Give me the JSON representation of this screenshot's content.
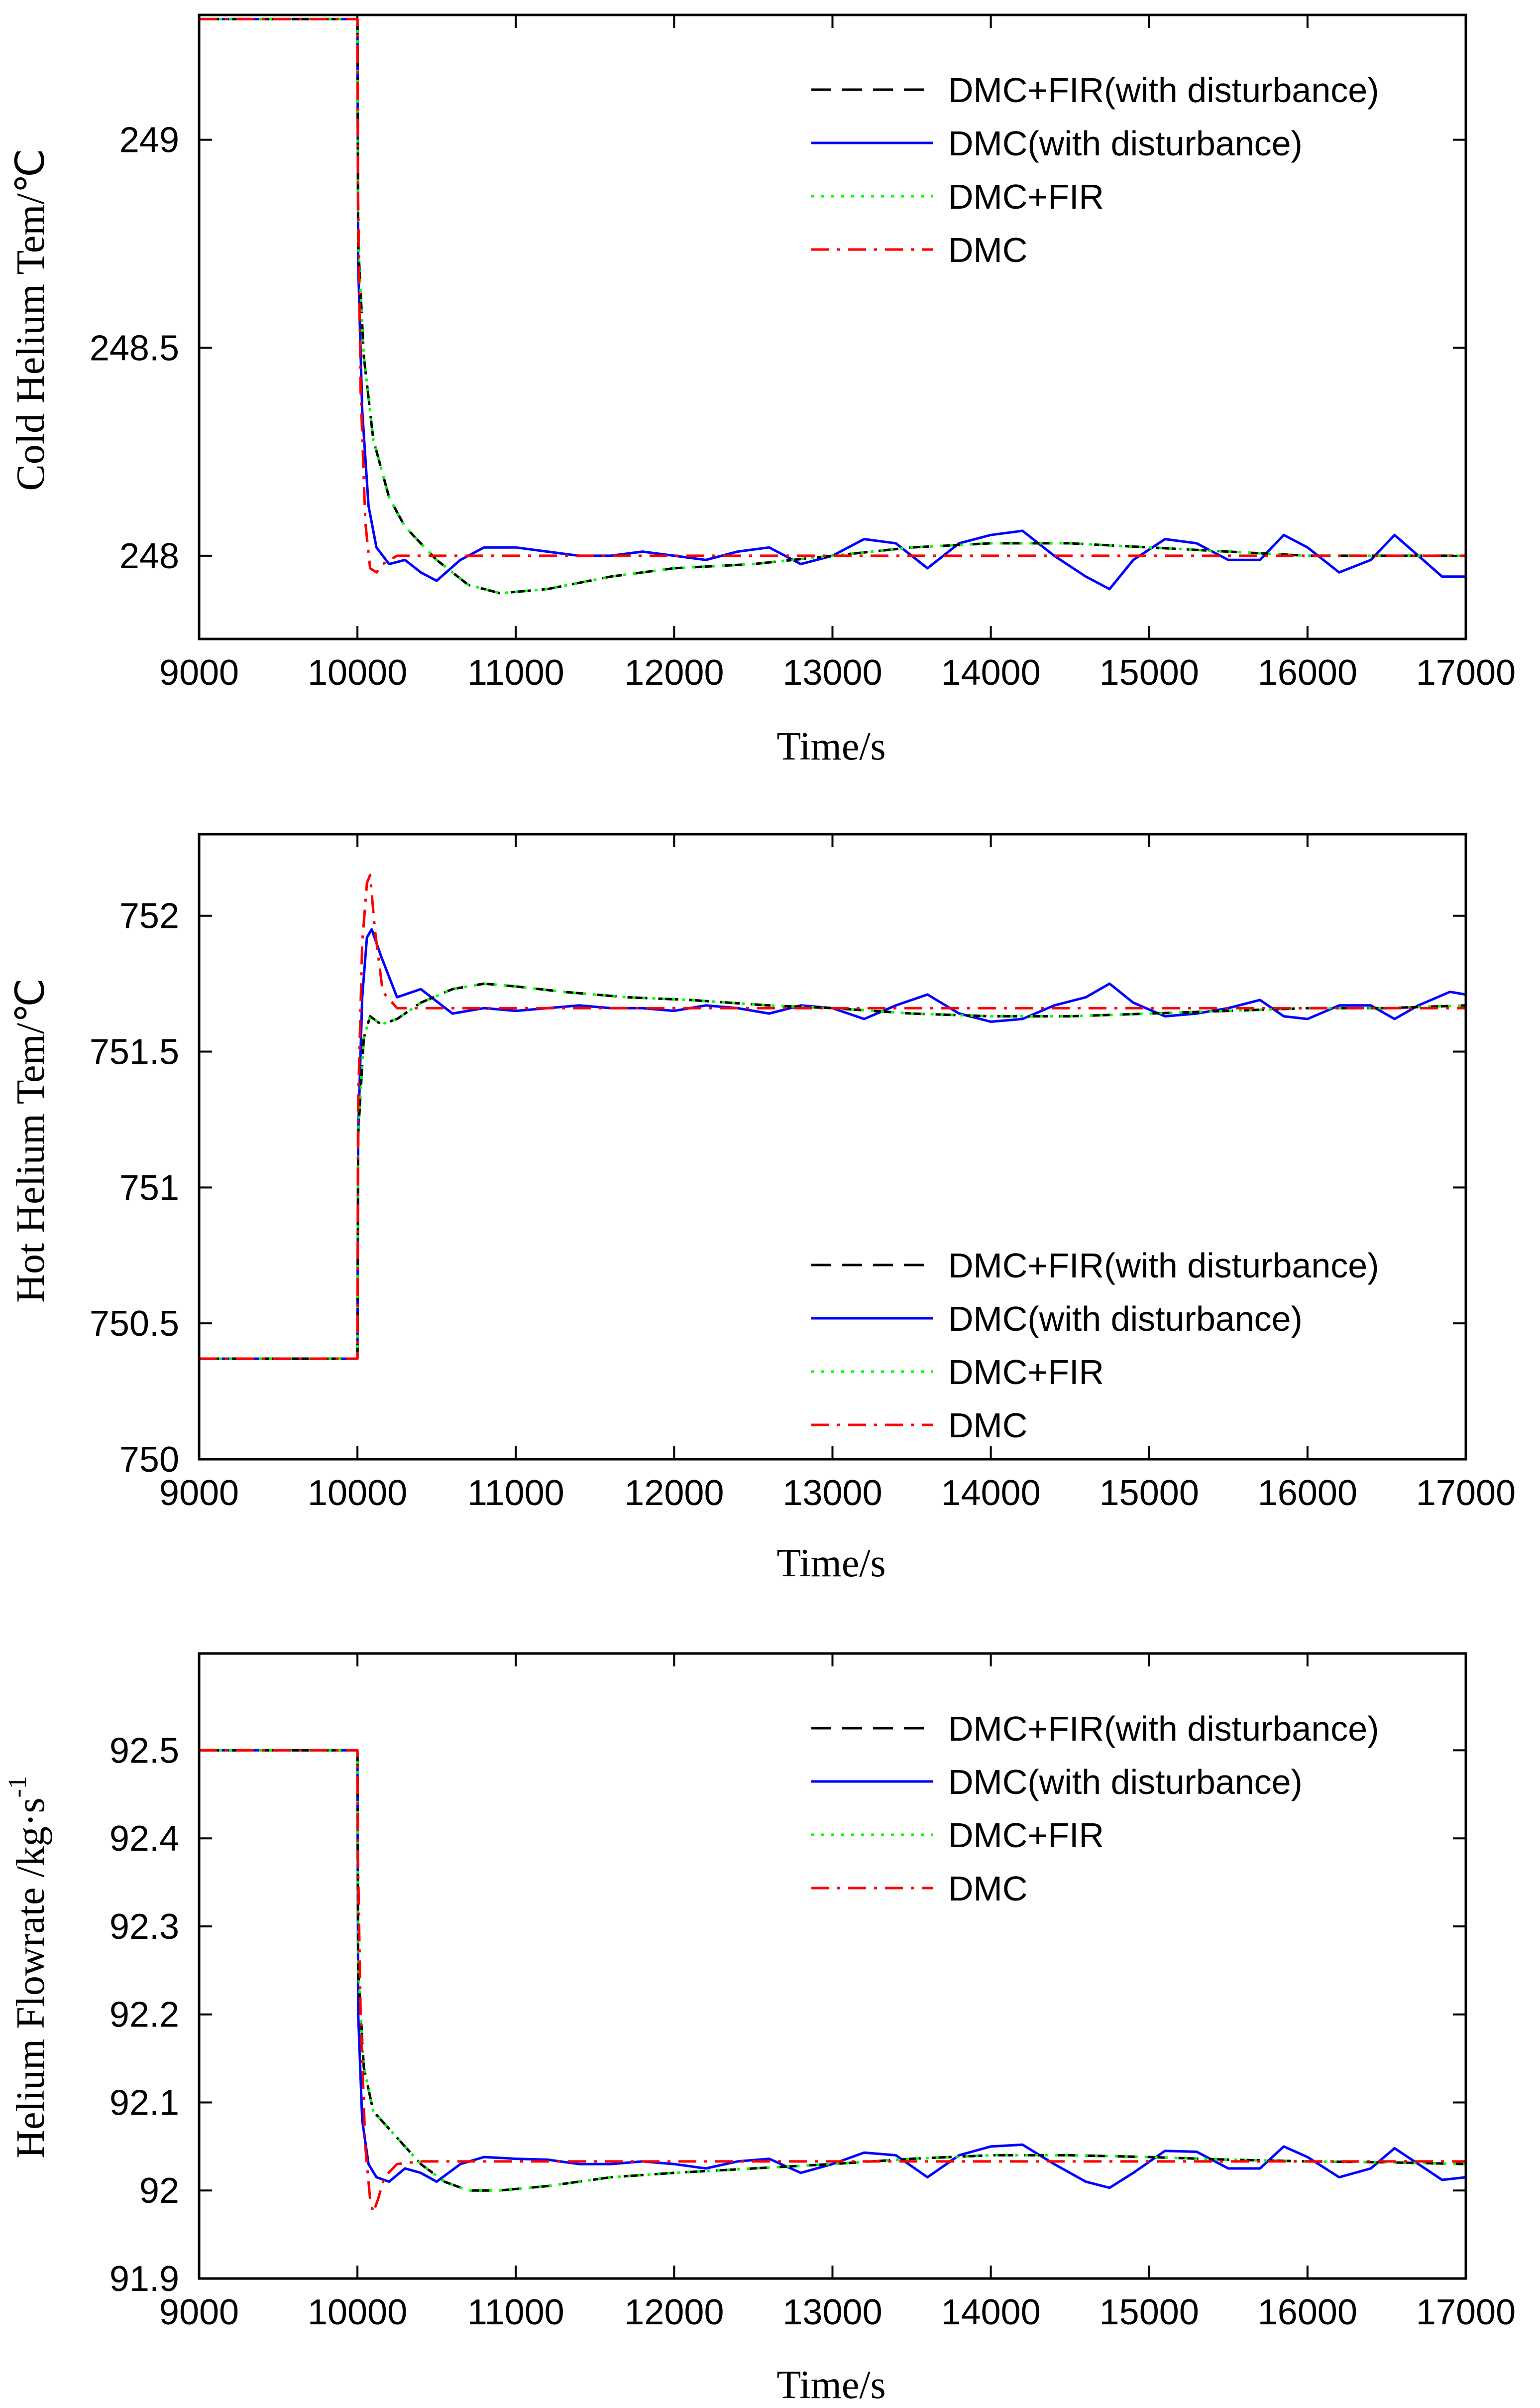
{
  "colors": {
    "fir_dist": "#000000",
    "dmc_dist": "#0000ff",
    "fir": "#00ff00",
    "dmc": "#ff0000",
    "axis": "#000000"
  },
  "legend": [
    {
      "key": "fir_dist",
      "label": "DMC+FIR(with disturbance)",
      "style": "dashed"
    },
    {
      "key": "dmc_dist",
      "label": "DMC(with disturbance)",
      "style": "solid"
    },
    {
      "key": "fir",
      "label": "DMC+FIR",
      "style": "dotted"
    },
    {
      "key": "dmc",
      "label": "DMC",
      "style": "dashdot"
    }
  ],
  "chart_data": [
    {
      "type": "line",
      "id": "cold",
      "xlabel": "Time/s",
      "ylabel": "Cold Helium Tem/℃",
      "xlim": [
        9000,
        17000
      ],
      "ylim": [
        247.8,
        249.3
      ],
      "xticks": [
        9000,
        10000,
        11000,
        12000,
        13000,
        14000,
        15000,
        16000,
        17000
      ],
      "yticks": [
        248,
        248.5,
        249
      ],
      "ytick_labels": [
        "248",
        "248.5",
        "249"
      ],
      "legend_position": "top-right",
      "series": [
        {
          "key": "fir_dist",
          "name": "DMC+FIR(with disturbance)",
          "x": [
            9000,
            10000,
            10005,
            10040,
            10100,
            10200,
            10300,
            10500,
            10700,
            10900,
            11200,
            11600,
            12000,
            12500,
            13000,
            13500,
            14000,
            14500,
            15000,
            15500,
            16000,
            16500,
            17000
          ],
          "y": [
            249.29,
            249.29,
            248.75,
            248.48,
            248.28,
            248.14,
            248.07,
            247.99,
            247.93,
            247.91,
            247.92,
            247.95,
            247.97,
            247.98,
            248.0,
            248.02,
            248.03,
            248.03,
            248.02,
            248.01,
            248.0,
            248.0,
            248.0
          ]
        },
        {
          "key": "dmc_dist",
          "name": "DMC(with disturbance)",
          "x": [
            9000,
            10000,
            10005,
            10030,
            10070,
            10120,
            10200,
            10300,
            10400,
            10500,
            10650,
            10800,
            11000,
            11200,
            11400,
            11600,
            11800,
            12000,
            12200,
            12400,
            12600,
            12800,
            13000,
            13200,
            13400,
            13600,
            13800,
            14000,
            14200,
            14400,
            14600,
            14750,
            14900,
            15100,
            15300,
            15500,
            15700,
            15850,
            16000,
            16200,
            16400,
            16550,
            16700,
            16850,
            17000
          ],
          "y": [
            249.29,
            249.29,
            248.7,
            248.35,
            248.12,
            248.02,
            247.98,
            247.99,
            247.96,
            247.94,
            247.99,
            248.02,
            248.02,
            248.01,
            248.0,
            248.0,
            248.01,
            248.0,
            247.99,
            248.01,
            248.02,
            247.98,
            248.0,
            248.04,
            248.03,
            247.97,
            248.03,
            248.05,
            248.06,
            248.0,
            247.95,
            247.92,
            247.99,
            248.04,
            248.03,
            247.99,
            247.99,
            248.05,
            248.02,
            247.96,
            247.99,
            248.05,
            248.0,
            247.95,
            247.95
          ]
        },
        {
          "key": "fir",
          "name": "DMC+FIR",
          "x": [
            9000,
            10000,
            10005,
            10040,
            10100,
            10200,
            10300,
            10500,
            10700,
            10900,
            11200,
            11600,
            12000,
            12500,
            13000,
            13500,
            14000,
            14500,
            15000,
            15500,
            16000,
            16500,
            17000
          ],
          "y": [
            249.29,
            249.29,
            248.75,
            248.48,
            248.28,
            248.14,
            248.07,
            247.99,
            247.93,
            247.91,
            247.92,
            247.95,
            247.97,
            247.98,
            248.0,
            248.02,
            248.03,
            248.03,
            248.02,
            248.01,
            248.0,
            248.0,
            248.0
          ]
        },
        {
          "key": "dmc",
          "name": "DMC",
          "x": [
            9000,
            10000,
            10003,
            10020,
            10050,
            10080,
            10120,
            10160,
            10250,
            10400,
            11000,
            17000
          ],
          "y": [
            249.29,
            249.29,
            248.9,
            248.4,
            248.08,
            247.97,
            247.96,
            247.98,
            248.0,
            248.0,
            248.0,
            248.0
          ]
        }
      ]
    },
    {
      "type": "line",
      "id": "hot",
      "xlabel": "Time/s",
      "ylabel": "Hot Helium Tem/℃",
      "xlim": [
        9000,
        17000
      ],
      "ylim": [
        750,
        752.3
      ],
      "xticks": [
        9000,
        10000,
        11000,
        12000,
        13000,
        14000,
        15000,
        16000,
        17000
      ],
      "yticks": [
        750,
        750.5,
        751,
        751.5,
        752
      ],
      "ytick_labels": [
        "750",
        "750.5",
        "751",
        "751.5",
        "752"
      ],
      "legend_position": "bottom-right",
      "series": [
        {
          "key": "fir_dist",
          "name": "DMC+FIR(with disturbance)",
          "x": [
            9000,
            10000,
            10005,
            10040,
            10080,
            10150,
            10250,
            10400,
            10600,
            10800,
            11000,
            11300,
            11700,
            12100,
            12600,
            13000,
            13500,
            14000,
            14500,
            15000,
            15500,
            16000,
            16500,
            17000
          ],
          "y": [
            750.37,
            750.37,
            751.2,
            751.55,
            751.63,
            751.6,
            751.62,
            751.68,
            751.73,
            751.75,
            751.74,
            751.72,
            751.7,
            751.69,
            751.67,
            751.66,
            751.64,
            751.63,
            751.63,
            751.64,
            751.65,
            751.66,
            751.66,
            751.67
          ]
        },
        {
          "key": "dmc_dist",
          "name": "DMC(with disturbance)",
          "x": [
            9000,
            10000,
            10005,
            10030,
            10060,
            10090,
            10150,
            10250,
            10400,
            10600,
            10800,
            11000,
            11200,
            11400,
            11600,
            11800,
            12000,
            12200,
            12400,
            12600,
            12800,
            13000,
            13200,
            13400,
            13600,
            13800,
            14000,
            14200,
            14400,
            14600,
            14750,
            14900,
            15100,
            15300,
            15500,
            15700,
            15850,
            16000,
            16200,
            16400,
            16550,
            16700,
            16900,
            17000
          ],
          "y": [
            750.37,
            750.37,
            751.2,
            751.7,
            751.92,
            751.95,
            751.85,
            751.7,
            751.73,
            751.64,
            751.66,
            751.65,
            751.66,
            751.67,
            751.66,
            751.66,
            751.65,
            751.67,
            751.66,
            751.64,
            751.67,
            751.66,
            751.62,
            751.67,
            751.71,
            751.64,
            751.61,
            751.62,
            751.67,
            751.7,
            751.75,
            751.68,
            751.63,
            751.64,
            751.66,
            751.69,
            751.63,
            751.62,
            751.67,
            751.67,
            751.62,
            751.67,
            751.72,
            751.71
          ]
        },
        {
          "key": "fir",
          "name": "DMC+FIR",
          "x": [
            9000,
            10000,
            10005,
            10040,
            10080,
            10150,
            10250,
            10400,
            10600,
            10800,
            11000,
            11300,
            11700,
            12100,
            12600,
            13000,
            13500,
            14000,
            14500,
            15000,
            15500,
            16000,
            16500,
            17000
          ],
          "y": [
            750.37,
            750.37,
            751.2,
            751.55,
            751.63,
            751.6,
            751.62,
            751.68,
            751.73,
            751.75,
            751.74,
            751.72,
            751.7,
            751.69,
            751.67,
            751.66,
            751.64,
            751.63,
            751.63,
            751.64,
            751.65,
            751.66,
            751.66,
            751.67
          ]
        },
        {
          "key": "dmc",
          "name": "DMC",
          "x": [
            9000,
            10000,
            10004,
            10030,
            10060,
            10080,
            10110,
            10160,
            10250,
            10400,
            11000,
            17000
          ],
          "y": [
            750.37,
            750.37,
            751.3,
            751.9,
            752.12,
            752.15,
            751.95,
            751.72,
            751.66,
            751.66,
            751.66,
            751.66
          ]
        }
      ]
    },
    {
      "type": "line",
      "id": "flow",
      "xlabel": "Time/s",
      "ylabel": "Helium Flowrate /kg·s",
      "ylabel_sup": "-1",
      "xlim": [
        9000,
        17000
      ],
      "ylim": [
        91.9,
        92.61
      ],
      "xticks": [
        9000,
        10000,
        11000,
        12000,
        13000,
        14000,
        15000,
        16000,
        17000
      ],
      "yticks": [
        91.9,
        92,
        92.1,
        92.2,
        92.3,
        92.4,
        92.5
      ],
      "ytick_labels": [
        "91.9",
        "92",
        "92.1",
        "92.2",
        "92.3",
        "92.4",
        "92.5"
      ],
      "legend_position": "top-right",
      "series": [
        {
          "key": "fir_dist",
          "name": "DMC+FIR(with disturbance)",
          "x": [
            9000,
            10000,
            10005,
            10040,
            10100,
            10200,
            10300,
            10400,
            10550,
            10700,
            10900,
            11200,
            11600,
            12000,
            12500,
            13000,
            13500,
            14000,
            14500,
            15000,
            15500,
            16000,
            16500,
            17000
          ],
          "y": [
            92.5,
            92.5,
            92.25,
            92.14,
            92.09,
            92.07,
            92.05,
            92.03,
            92.01,
            92.0,
            92.0,
            92.005,
            92.015,
            92.02,
            92.025,
            92.03,
            92.036,
            92.04,
            92.04,
            92.038,
            92.035,
            92.033,
            92.032,
            92.03
          ]
        },
        {
          "key": "dmc_dist",
          "name": "DMC(with disturbance)",
          "x": [
            9000,
            10000,
            10005,
            10030,
            10070,
            10120,
            10200,
            10300,
            10400,
            10500,
            10650,
            10800,
            11000,
            11200,
            11400,
            11600,
            11800,
            12000,
            12200,
            12400,
            12600,
            12800,
            13000,
            13200,
            13400,
            13600,
            13800,
            14000,
            14200,
            14400,
            14600,
            14750,
            14900,
            15100,
            15300,
            15500,
            15700,
            15850,
            16000,
            16200,
            16400,
            16550,
            16700,
            16850,
            17000
          ],
          "y": [
            92.5,
            92.5,
            92.2,
            92.08,
            92.03,
            92.015,
            92.01,
            92.025,
            92.02,
            92.01,
            92.03,
            92.038,
            92.036,
            92.035,
            92.03,
            92.03,
            92.033,
            92.03,
            92.025,
            92.033,
            92.036,
            92.02,
            92.03,
            92.043,
            92.04,
            92.015,
            92.04,
            92.05,
            92.052,
            92.03,
            92.01,
            92.003,
            92.02,
            92.045,
            92.044,
            92.025,
            92.025,
            92.05,
            92.038,
            92.015,
            92.025,
            92.048,
            92.03,
            92.012,
            92.015
          ]
        },
        {
          "key": "fir",
          "name": "DMC+FIR",
          "x": [
            9000,
            10000,
            10005,
            10040,
            10100,
            10200,
            10300,
            10400,
            10550,
            10700,
            10900,
            11200,
            11600,
            12000,
            12500,
            13000,
            13500,
            14000,
            14500,
            15000,
            15500,
            16000,
            16500,
            17000
          ],
          "y": [
            92.5,
            92.5,
            92.25,
            92.14,
            92.09,
            92.07,
            92.05,
            92.03,
            92.01,
            92.0,
            92.0,
            92.005,
            92.015,
            92.02,
            92.025,
            92.03,
            92.036,
            92.04,
            92.04,
            92.038,
            92.035,
            92.033,
            92.032,
            92.03
          ]
        },
        {
          "key": "dmc",
          "name": "DMC",
          "x": [
            9000,
            10000,
            10003,
            10020,
            10050,
            10080,
            10100,
            10130,
            10170,
            10250,
            10400,
            11000,
            17000
          ],
          "y": [
            92.5,
            92.5,
            92.38,
            92.2,
            92.05,
            91.99,
            91.975,
            91.99,
            92.015,
            92.03,
            92.033,
            92.033,
            92.033
          ]
        }
      ]
    }
  ]
}
